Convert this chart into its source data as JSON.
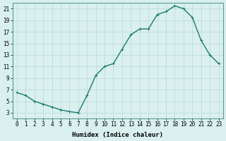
{
  "x": [
    0,
    1,
    2,
    3,
    4,
    5,
    6,
    7,
    8,
    9,
    10,
    11,
    12,
    13,
    14,
    15,
    16,
    17,
    18,
    19,
    20,
    21,
    22,
    23
  ],
  "y": [
    6.5,
    6.0,
    5.0,
    4.5,
    4.0,
    3.5,
    3.2,
    3.0,
    6.0,
    9.5,
    11.0,
    11.5,
    14.0,
    16.5,
    17.5,
    17.5,
    20.0,
    20.5,
    21.5,
    21.0,
    19.5,
    15.5,
    13.0,
    11.5
  ],
  "line_color": "#1a7a6e",
  "marker": "+",
  "marker_size": 3,
  "bg_color": "#d9f0ef",
  "grid_color": "#b8d8d5",
  "xlabel": "Humidex (Indice chaleur)",
  "xlim": [
    -0.5,
    23.5
  ],
  "ylim": [
    2,
    22
  ],
  "yticks": [
    3,
    5,
    7,
    9,
    11,
    13,
    15,
    17,
    19,
    21
  ],
  "xticks": [
    0,
    1,
    2,
    3,
    4,
    5,
    6,
    7,
    8,
    9,
    10,
    11,
    12,
    13,
    14,
    15,
    16,
    17,
    18,
    19,
    20,
    21,
    22,
    23
  ],
  "tick_fontsize": 5.5,
  "xlabel_fontsize": 6.5,
  "line_width": 1.0,
  "marker_linewidth": 0.7
}
